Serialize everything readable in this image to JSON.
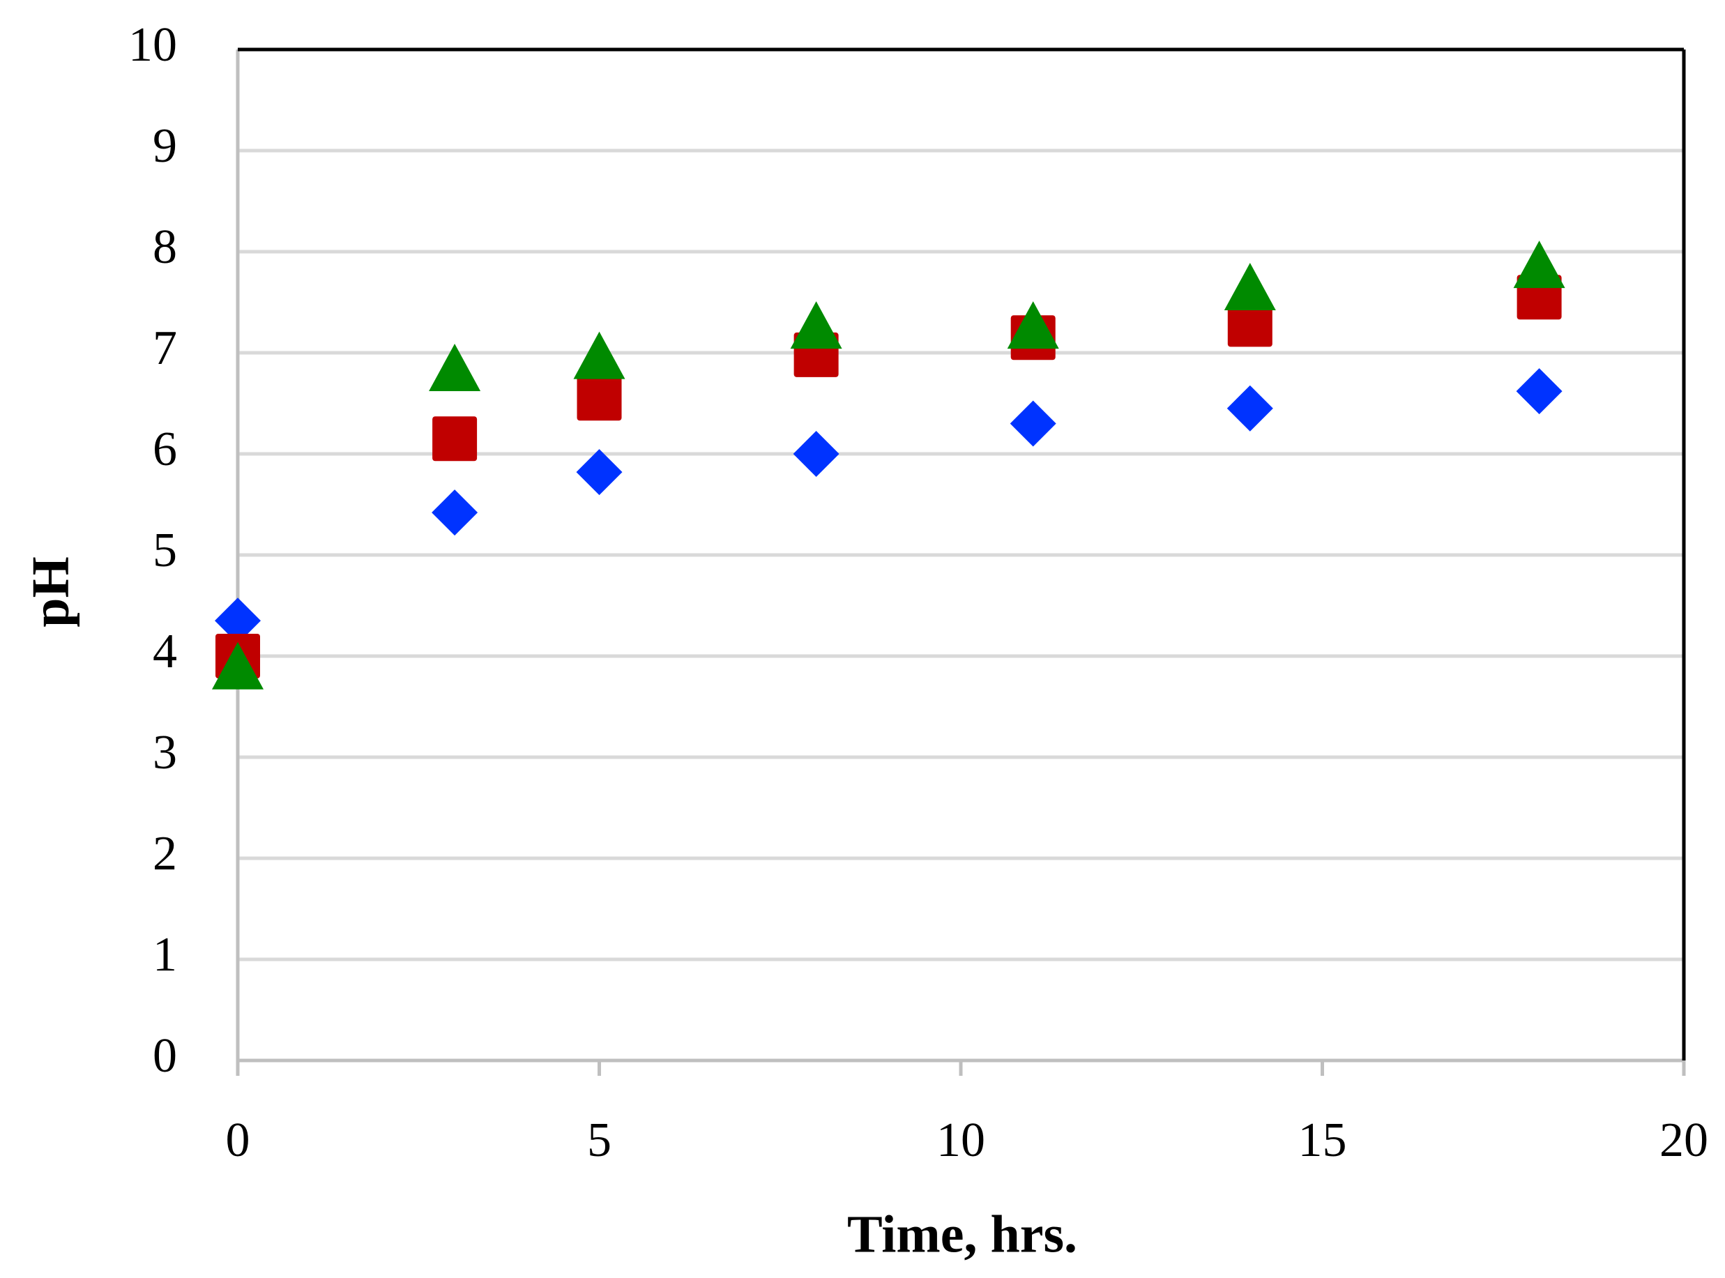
{
  "chart_data": {
    "type": "scatter",
    "x_label": "Time, hrs.",
    "y_label": "pH",
    "x": [
      0,
      3,
      5,
      8,
      11,
      14,
      18
    ],
    "series": [
      {
        "color": "#0033ff",
        "marker": "diamond",
        "values": [
          4.35,
          5.42,
          5.82,
          6.0,
          6.3,
          6.45,
          6.62
        ]
      },
      {
        "color": "#c00000",
        "marker": "square",
        "values": [
          4.0,
          6.15,
          6.55,
          6.98,
          7.15,
          7.28,
          7.55
        ]
      },
      {
        "color": "#008a00",
        "marker": "triangle",
        "values": [
          3.85,
          6.8,
          6.92,
          7.22,
          7.22,
          7.6,
          7.82
        ]
      }
    ],
    "xlim": [
      0,
      20
    ],
    "xticks": [
      0,
      5,
      10,
      15,
      20
    ],
    "ylim": [
      0,
      10
    ],
    "yticks": [
      0,
      1,
      2,
      3,
      4,
      5,
      6,
      7,
      8,
      9,
      10
    ],
    "grid": true
  }
}
